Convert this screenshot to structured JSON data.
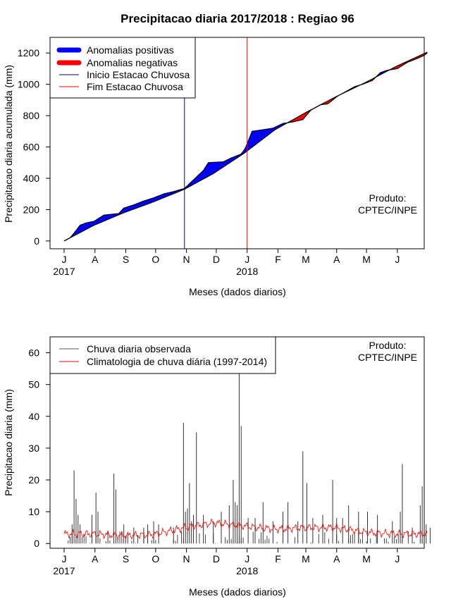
{
  "title": "Precipitacao diaria 2017/2018 : Regiao 96",
  "credit": [
    "Produto:",
    "CPTEC/INPE"
  ],
  "xaxis": {
    "label": "Meses (dados diarios)",
    "months": [
      "J",
      "A",
      "S",
      "O",
      "N",
      "D",
      "J",
      "F",
      "M",
      "A",
      "M",
      "J"
    ],
    "years": [
      {
        "label": "2017",
        "month_index": 0
      },
      {
        "label": "2018",
        "month_index": 6
      }
    ],
    "start_date": "2017-07-01",
    "end_date": "2018-06-30"
  },
  "colors": {
    "positive": "#0000ff",
    "negative": "#ff0000",
    "onset": "#00008b",
    "end": "#ff0000",
    "observed": "#000000",
    "climatology": "#ff0000"
  },
  "chart_data": [
    {
      "type": "area",
      "ylabel": "Precipitacao diaria acumulada (mm)",
      "ylim": [
        -50,
        1300
      ],
      "yticks": [
        0,
        200,
        400,
        600,
        800,
        1000,
        1200
      ],
      "legend": {
        "placement": "top-left",
        "entries": [
          "Anomalias positivas",
          "Anomalias negativas",
          "Inicio Estacao Chuvosa",
          "Fim Estacao Chuvosa"
        ]
      },
      "vlines": [
        {
          "name": "Inicio Estacao Chuvosa",
          "day": 121
        },
        {
          "name": "Fim Estacao Chuvosa",
          "day": 184
        }
      ],
      "series": [
        {
          "name": "Observada acumulada",
          "points": [
            [
              0,
              0
            ],
            [
              6,
              20
            ],
            [
              10,
              50
            ],
            [
              16,
              100
            ],
            [
              22,
              115
            ],
            [
              30,
              125
            ],
            [
              40,
              165
            ],
            [
              55,
              175
            ],
            [
              60,
              210
            ],
            [
              70,
              230
            ],
            [
              80,
              255
            ],
            [
              90,
              275
            ],
            [
              100,
              300
            ],
            [
              110,
              315
            ],
            [
              118,
              330
            ],
            [
              121,
              335
            ],
            [
              135,
              420
            ],
            [
              140,
              450
            ],
            [
              145,
              500
            ],
            [
              160,
              505
            ],
            [
              168,
              530
            ],
            [
              178,
              555
            ],
            [
              182,
              590
            ],
            [
              189,
              700
            ],
            [
              200,
              710
            ],
            [
              210,
              720
            ],
            [
              220,
              750
            ],
            [
              230,
              760
            ],
            [
              240,
              775
            ],
            [
              248,
              835
            ],
            [
              258,
              870
            ],
            [
              265,
              875
            ],
            [
              275,
              925
            ],
            [
              285,
              960
            ],
            [
              292,
              985
            ],
            [
              300,
              1000
            ],
            [
              310,
              1025
            ],
            [
              318,
              1075
            ],
            [
              325,
              1090
            ],
            [
              335,
              1100
            ],
            [
              345,
              1140
            ],
            [
              355,
              1165
            ],
            [
              362,
              1185
            ],
            [
              365,
              1200
            ]
          ]
        },
        {
          "name": "Climatologia acumulada",
          "points": [
            [
              0,
              0
            ],
            [
              30,
              100
            ],
            [
              60,
              180
            ],
            [
              90,
              250
            ],
            [
              121,
              330
            ],
            [
              150,
              430
            ],
            [
              181,
              560
            ],
            [
              212,
              710
            ],
            [
              243,
              820
            ],
            [
              273,
              920
            ],
            [
              304,
              1015
            ],
            [
              334,
              1115
            ],
            [
              365,
              1205
            ]
          ]
        }
      ]
    },
    {
      "type": "bar",
      "ylabel": "Precipitacao diaria (mm)",
      "ylim": [
        -1.5,
        65
      ],
      "yticks": [
        0,
        10,
        20,
        30,
        40,
        50,
        60
      ],
      "legend": {
        "placement": "top-left",
        "entries": [
          "Chuva diaria observada",
          "Climatologia de chuva diária (1997-2014)"
        ]
      },
      "spikes": [
        [
          8,
          6
        ],
        [
          10,
          23
        ],
        [
          12,
          14
        ],
        [
          14,
          9
        ],
        [
          16,
          6
        ],
        [
          28,
          9
        ],
        [
          32,
          16
        ],
        [
          34,
          10
        ],
        [
          44,
          4
        ],
        [
          50,
          22
        ],
        [
          52,
          17
        ],
        [
          60,
          6
        ],
        [
          70,
          5
        ],
        [
          80,
          5
        ],
        [
          84,
          6
        ],
        [
          90,
          7
        ],
        [
          95,
          6
        ],
        [
          110,
          5
        ],
        [
          120,
          38
        ],
        [
          122,
          10
        ],
        [
          124,
          11
        ],
        [
          126,
          19
        ],
        [
          128,
          7
        ],
        [
          130,
          9
        ],
        [
          133,
          35
        ],
        [
          140,
          9
        ],
        [
          150,
          7
        ],
        [
          158,
          10
        ],
        [
          166,
          12
        ],
        [
          170,
          20
        ],
        [
          172,
          13
        ],
        [
          174,
          12
        ],
        [
          176,
          54
        ],
        [
          178,
          37
        ],
        [
          185,
          8
        ],
        [
          192,
          8
        ],
        [
          200,
          13
        ],
        [
          210,
          7
        ],
        [
          220,
          10
        ],
        [
          225,
          13
        ],
        [
          235,
          7
        ],
        [
          240,
          29
        ],
        [
          244,
          19
        ],
        [
          250,
          8
        ],
        [
          260,
          9
        ],
        [
          270,
          20
        ],
        [
          274,
          8
        ],
        [
          280,
          8
        ],
        [
          286,
          12
        ],
        [
          296,
          10
        ],
        [
          305,
          10
        ],
        [
          315,
          9
        ],
        [
          330,
          7
        ],
        [
          338,
          10
        ],
        [
          340,
          25
        ],
        [
          350,
          5
        ],
        [
          358,
          12
        ],
        [
          360,
          18
        ],
        [
          364,
          6
        ],
        [
          368,
          5
        ]
      ],
      "climatology": {
        "name": "Climatologia de chuva diária (1997-2014)",
        "anchors": [
          [
            0,
            3
          ],
          [
            30,
            3
          ],
          [
            60,
            2.5
          ],
          [
            90,
            2.8
          ],
          [
            121,
            5
          ],
          [
            150,
            6.5
          ],
          [
            181,
            5.5
          ],
          [
            212,
            4.5
          ],
          [
            243,
            5
          ],
          [
            273,
            5
          ],
          [
            304,
            3.5
          ],
          [
            334,
            3
          ],
          [
            365,
            3
          ]
        ]
      }
    }
  ]
}
